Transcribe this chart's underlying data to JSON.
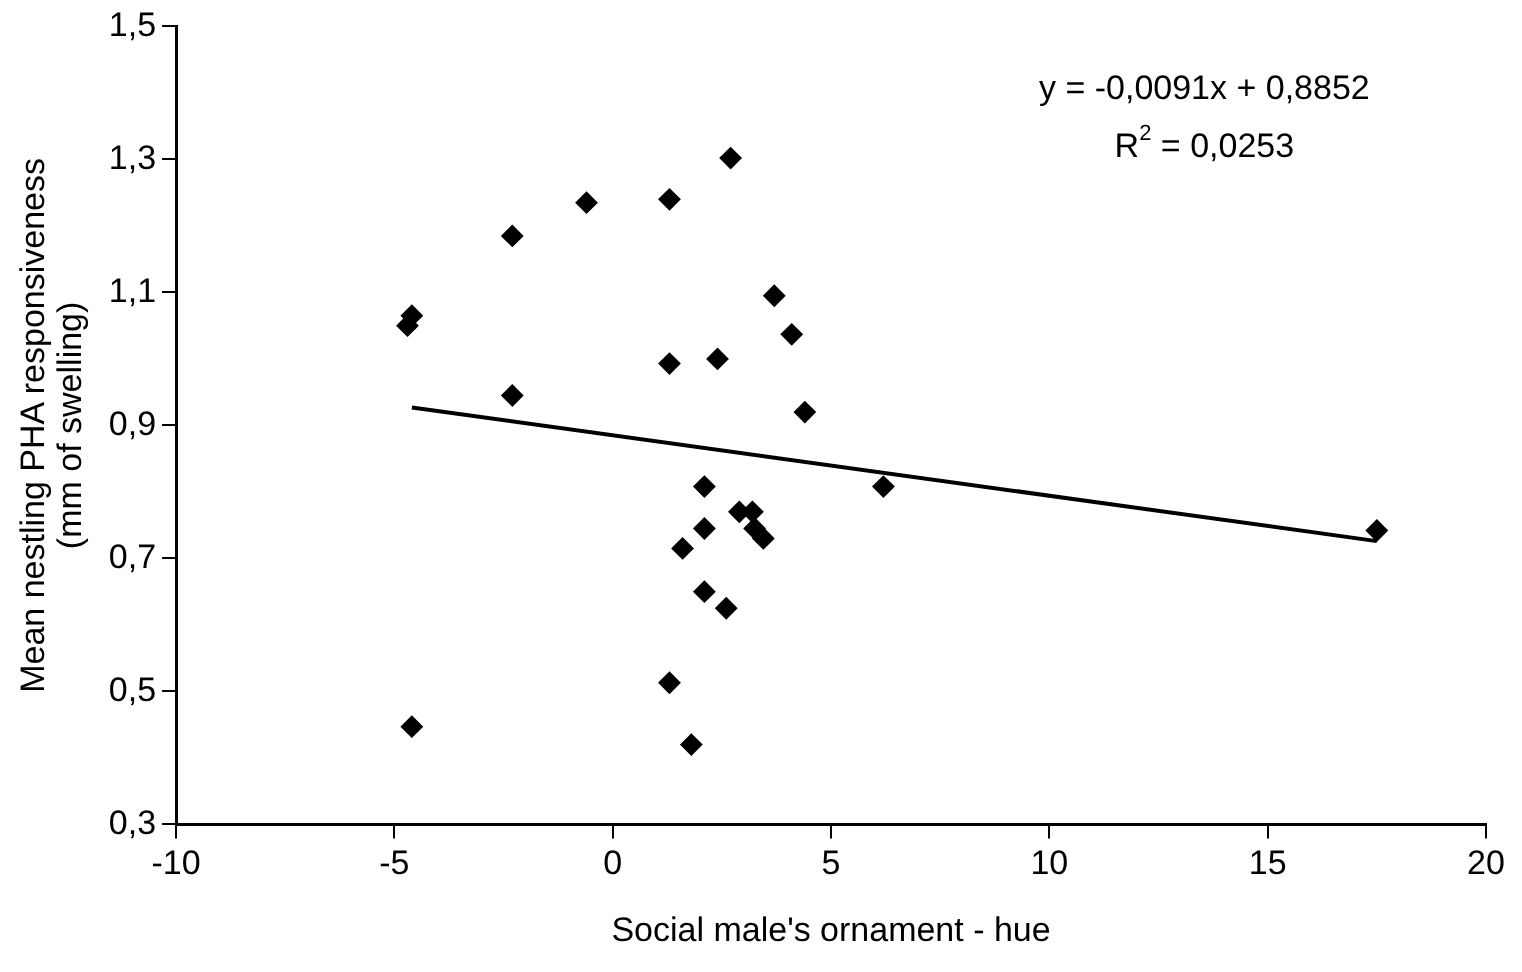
{
  "chart_data": {
    "type": "scatter",
    "xlabel": "Social male's ornament - hue",
    "ylabel": "Mean nestling PHA responsiveness\n(mm of swelling)",
    "annotations": [
      "y = -0,0091x + 0,8852",
      "R$^{2}$ = 0,0253"
    ],
    "xlim": [
      -10,
      20
    ],
    "xticks": [
      -10,
      -5,
      0,
      5,
      10,
      15,
      20
    ],
    "ylim": [
      0.3,
      1.5
    ],
    "yticks": [
      {
        "value": 0.3,
        "label": "0,3"
      },
      {
        "value": 0.5,
        "label": "0,5"
      },
      {
        "value": 0.7,
        "label": "0,7"
      },
      {
        "value": 0.9,
        "label": "0,9"
      },
      {
        "value": 1.1,
        "label": "1,1"
      },
      {
        "value": 1.3,
        "label": "1,3"
      },
      {
        "value": 1.5,
        "label": "1,5"
      }
    ],
    "grid": false,
    "legend": false,
    "marker": "diamond",
    "series": [
      {
        "type": "scatter",
        "color": "#000000",
        "x": [
          -4.6,
          -4.7,
          -4.6,
          -2.3,
          -2.3,
          -0.6,
          1.3,
          1.3,
          1.3,
          2.7,
          3.7,
          4.1,
          2.4,
          4.4,
          6.2,
          17.5,
          2.1,
          2.1,
          1.6,
          2.1,
          2.6,
          1.8,
          2.9,
          3.2,
          3.45,
          3.25
        ],
        "values": [
          1.065,
          1.05,
          0.447,
          1.185,
          0.945,
          1.235,
          1.24,
          0.993,
          0.513,
          1.302,
          1.095,
          1.037,
          1.0,
          0.92,
          0.808,
          0.742,
          0.808,
          0.745,
          0.715,
          0.65,
          0.625,
          0.42,
          0.77,
          0.77,
          0.73,
          0.745
        ]
      },
      {
        "type": "line",
        "color": "#000000",
        "marker": "none",
        "x": [
          -4.6,
          17.5
        ],
        "values": [
          0.927,
          0.726
        ]
      }
    ]
  }
}
